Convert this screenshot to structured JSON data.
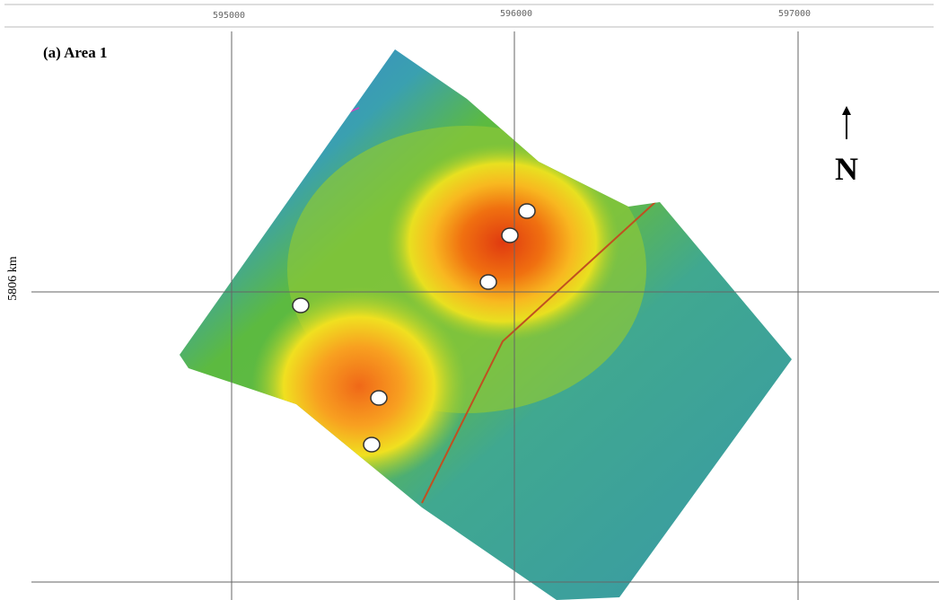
{
  "axes": {
    "x_labels": [
      "595000",
      "596000",
      "597000"
    ],
    "y_label": "5806 km"
  },
  "panel_label": "(a) Area 1",
  "north_label": "N"
}
